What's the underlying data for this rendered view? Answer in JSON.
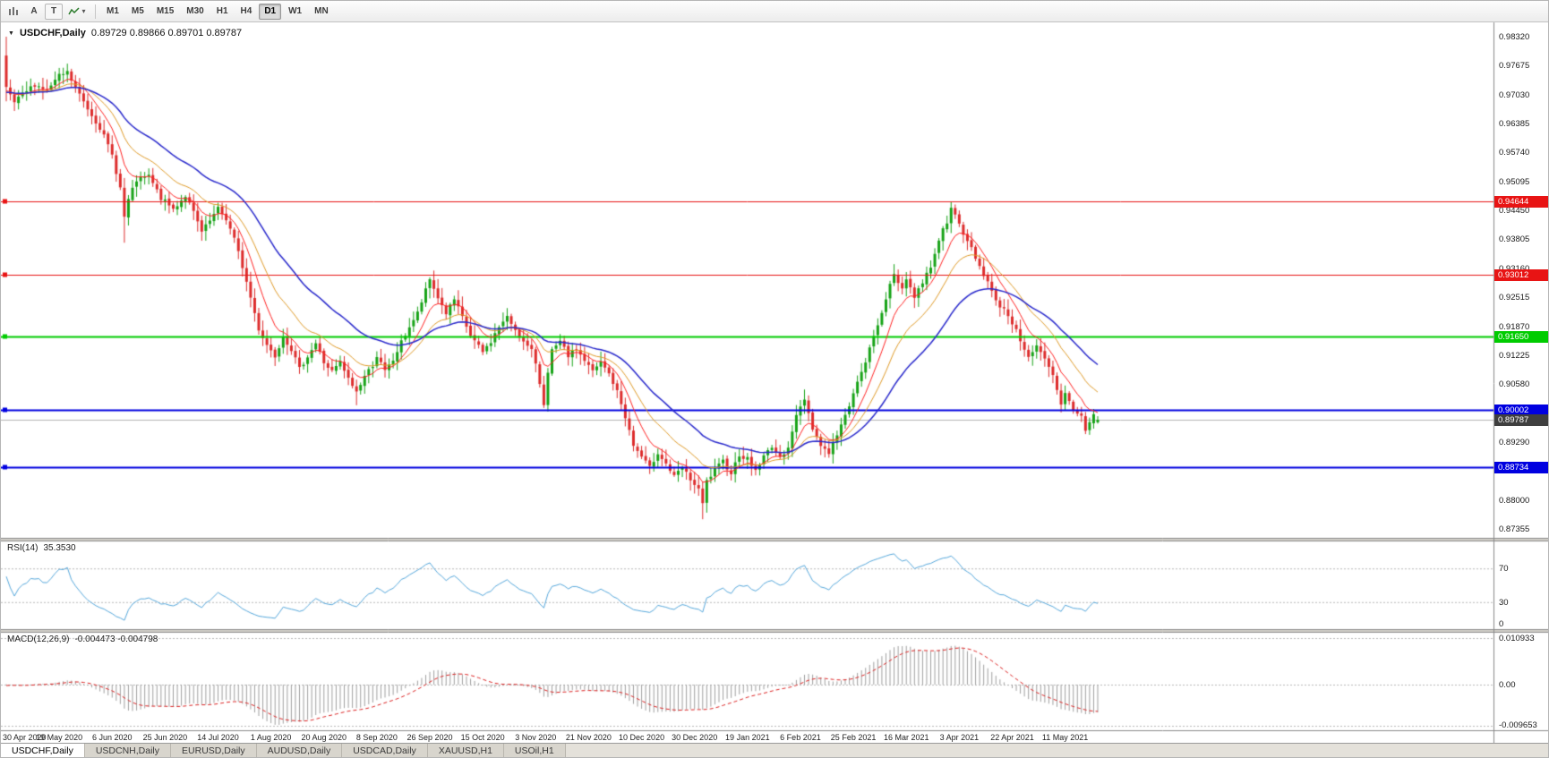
{
  "toolbar": {
    "letter_a": "A",
    "letter_t": "T",
    "icons": {
      "chart_window": "chart-icon",
      "indicators": "indicator-line-icon",
      "caret": "▾",
      "symbol_dropdown": "▼"
    },
    "timeframes": [
      "M1",
      "M5",
      "M15",
      "M30",
      "H1",
      "H4",
      "D1",
      "W1",
      "MN"
    ],
    "active_timeframe": "D1"
  },
  "tabs": {
    "active": "USDCHF,Daily",
    "items": [
      "USDCHF,Daily",
      "USDCNH,Daily",
      "EURUSD,Daily",
      "AUDUSD,Daily",
      "USDCAD,Daily",
      "XAUUSD,H1",
      "USOil,H1"
    ]
  },
  "colors": {
    "bull": "#17a317",
    "bear": "#dd2c2c",
    "price_line": "#b4b4b4",
    "current_price_bg": "#3f3f3f",
    "separator": "#d4d1ca",
    "panel_border": "#8a8a8a",
    "dotted_level": "#b8b8b8"
  },
  "chart_data": {
    "type": "candlestick",
    "title": {
      "symbol": "USDCHF,Daily",
      "ohlc": "0.89729 0.89866 0.89701 0.89787"
    },
    "price_axis": {
      "min": 0.87355,
      "max": 0.9832,
      "tick_step": 0.00645,
      "ticks": [
        "0.98320",
        "0.97675",
        "0.97030",
        "0.96385",
        "0.95740",
        "0.95095",
        "0.94450",
        "0.93805",
        "0.93160",
        "0.92515",
        "0.91870",
        "0.91225",
        "0.90580",
        "0.89935",
        "0.89290",
        "0.88645",
        "0.88000",
        "0.87355"
      ]
    },
    "x_labels": [
      "30 Apr 2020",
      "19 May 2020",
      "6 Jun 2020",
      "25 Jun 2020",
      "14 Jul 2020",
      "1 Aug 2020",
      "20 Aug 2020",
      "8 Sep 2020",
      "26 Sep 2020",
      "15 Oct 2020",
      "3 Nov 2020",
      "21 Nov 2020",
      "10 Dec 2020",
      "30 Dec 2020",
      "19 Jan 2021",
      "6 Feb 2021",
      "25 Feb 2021",
      "16 Mar 2021",
      "3 Apr 2021",
      "22 Apr 2021",
      "11 May 2021"
    ],
    "bars_per_label": 13,
    "total_bars": 269,
    "close_anchors": [
      [
        -70,
        0.964
      ],
      [
        -50,
        0.97
      ],
      [
        -30,
        0.9748
      ],
      [
        -15,
        0.969
      ],
      [
        -5,
        0.9705
      ],
      [
        0,
        0.9715
      ],
      [
        2,
        0.9685
      ],
      [
        4,
        0.9702
      ],
      [
        7,
        0.9726
      ],
      [
        10,
        0.9712
      ],
      [
        13,
        0.9744
      ],
      [
        15,
        0.9752
      ],
      [
        17,
        0.9718
      ],
      [
        20,
        0.9672
      ],
      [
        23,
        0.963
      ],
      [
        26,
        0.9568
      ],
      [
        28,
        0.9495
      ],
      [
        29,
        0.943
      ],
      [
        30,
        0.9468
      ],
      [
        32,
        0.9512
      ],
      [
        35,
        0.9521
      ],
      [
        38,
        0.9472
      ],
      [
        41,
        0.9448
      ],
      [
        44,
        0.9478
      ],
      [
        46,
        0.944
      ],
      [
        48,
        0.9396
      ],
      [
        50,
        0.9421
      ],
      [
        52,
        0.9448
      ],
      [
        54,
        0.9426
      ],
      [
        56,
        0.9381
      ],
      [
        58,
        0.932
      ],
      [
        60,
        0.9251
      ],
      [
        62,
        0.9181
      ],
      [
        64,
        0.9146
      ],
      [
        66,
        0.9121
      ],
      [
        68,
        0.9166
      ],
      [
        70,
        0.9136
      ],
      [
        72,
        0.9091
      ],
      [
        74,
        0.9121
      ],
      [
        76,
        0.9149
      ],
      [
        78,
        0.9106
      ],
      [
        80,
        0.9086
      ],
      [
        82,
        0.9106
      ],
      [
        84,
        0.9069
      ],
      [
        86,
        0.9041
      ],
      [
        88,
        0.9076
      ],
      [
        90,
        0.9101
      ],
      [
        91,
        0.9121
      ],
      [
        93,
        0.9086
      ],
      [
        95,
        0.9111
      ],
      [
        97,
        0.9151
      ],
      [
        99,
        0.9186
      ],
      [
        101,
        0.9216
      ],
      [
        103,
        0.9266
      ],
      [
        104,
        0.9291
      ],
      [
        106,
        0.9251
      ],
      [
        108,
        0.9216
      ],
      [
        110,
        0.9246
      ],
      [
        112,
        0.9206
      ],
      [
        114,
        0.9166
      ],
      [
        116,
        0.9141
      ],
      [
        117,
        0.9129
      ],
      [
        119,
        0.9153
      ],
      [
        121,
        0.9186
      ],
      [
        123,
        0.9206
      ],
      [
        125,
        0.9181
      ],
      [
        127,
        0.9151
      ],
      [
        129,
        0.9131
      ],
      [
        130,
        0.9106
      ],
      [
        131,
        0.9061
      ],
      [
        132,
        0.9016
      ],
      [
        133,
        0.9081
      ],
      [
        134,
        0.9131
      ],
      [
        136,
        0.9151
      ],
      [
        138,
        0.9121
      ],
      [
        140,
        0.9136
      ],
      [
        142,
        0.9111
      ],
      [
        144,
        0.9086
      ],
      [
        146,
        0.9106
      ],
      [
        148,
        0.9081
      ],
      [
        150,
        0.9041
      ],
      [
        152,
        0.8986
      ],
      [
        154,
        0.8921
      ],
      [
        156,
        0.8896
      ],
      [
        158,
        0.8871
      ],
      [
        160,
        0.8906
      ],
      [
        162,
        0.8881
      ],
      [
        164,
        0.8851
      ],
      [
        166,
        0.8871
      ],
      [
        168,
        0.8846
      ],
      [
        170,
        0.8821
      ],
      [
        171,
        0.8791
      ],
      [
        172,
        0.8841
      ],
      [
        174,
        0.8866
      ],
      [
        176,
        0.8886
      ],
      [
        178,
        0.8861
      ],
      [
        180,
        0.8901
      ],
      [
        182,
        0.8891
      ],
      [
        184,
        0.8866
      ],
      [
        186,
        0.8896
      ],
      [
        188,
        0.8921
      ],
      [
        190,
        0.8891
      ],
      [
        192,
        0.8921
      ],
      [
        194,
        0.8986
      ],
      [
        196,
        0.9026
      ],
      [
        198,
        0.8961
      ],
      [
        200,
        0.8921
      ],
      [
        202,
        0.8906
      ],
      [
        204,
        0.8946
      ],
      [
        206,
        0.8986
      ],
      [
        208,
        0.9041
      ],
      [
        210,
        0.9081
      ],
      [
        212,
        0.9136
      ],
      [
        214,
        0.9191
      ],
      [
        216,
        0.9251
      ],
      [
        218,
        0.9301
      ],
      [
        220,
        0.9271
      ],
      [
        221,
        0.9296
      ],
      [
        223,
        0.9251
      ],
      [
        225,
        0.9286
      ],
      [
        227,
        0.9321
      ],
      [
        229,
        0.9381
      ],
      [
        231,
        0.9421
      ],
      [
        232,
        0.9456
      ],
      [
        233,
        0.9431
      ],
      [
        235,
        0.9391
      ],
      [
        237,
        0.9361
      ],
      [
        239,
        0.9321
      ],
      [
        241,
        0.9286
      ],
      [
        243,
        0.9241
      ],
      [
        245,
        0.9226
      ],
      [
        247,
        0.9196
      ],
      [
        249,
        0.9156
      ],
      [
        251,
        0.9121
      ],
      [
        253,
        0.9141
      ],
      [
        255,
        0.9111
      ],
      [
        257,
        0.9076
      ],
      [
        258,
        0.9041
      ],
      [
        259,
        0.9011
      ],
      [
        260,
        0.9036
      ],
      [
        262,
        0.9001
      ],
      [
        264,
        0.8986
      ],
      [
        265,
        0.8956
      ],
      [
        266,
        0.8976
      ],
      [
        267,
        0.8991
      ],
      [
        268,
        0.89787
      ]
    ],
    "wick_overrides": [
      {
        "bar": 0,
        "open": 0.979,
        "high": 0.9832,
        "low": 0.9688
      },
      {
        "bar": 15,
        "high": 0.9772
      },
      {
        "bar": 29,
        "low": 0.9373
      },
      {
        "bar": 52,
        "high": 0.9462
      },
      {
        "bar": 86,
        "low": 0.9011
      },
      {
        "bar": 104,
        "high": 0.9296
      },
      {
        "bar": 132,
        "low": 0.9005
      },
      {
        "bar": 171,
        "low": 0.8757
      },
      {
        "bar": 196,
        "high": 0.9046
      },
      {
        "bar": 232,
        "high": 0.9465
      }
    ],
    "last_candle": {
      "open": 0.89729,
      "high": 0.89866,
      "low": 0.89701,
      "close": 0.89787
    },
    "moving_averages": [
      {
        "type": "ema",
        "period": 8,
        "color": "#ff2323",
        "width": 1
      },
      {
        "type": "ema",
        "period": 17,
        "color": "#e09b28",
        "width": 1
      },
      {
        "type": "ema",
        "period": 34,
        "color": "#2929cc",
        "width": 1.5
      }
    ],
    "horizontal_levels": [
      {
        "price": 0.94644,
        "label": "0.94644",
        "color": "#e81414",
        "width": 1
      },
      {
        "price": 0.93012,
        "label": "0.93012",
        "color": "#e81414",
        "width": 1
      },
      {
        "price": 0.9165,
        "label": "0.91650",
        "color": "#00cc00",
        "width": 2
      },
      {
        "price": 0.90002,
        "label": "0.90002",
        "color": "#0000e0",
        "width": 2
      },
      {
        "price": 0.88734,
        "label": "0.88734",
        "color": "#0000e0",
        "width": 2
      }
    ],
    "current_price": {
      "price": 0.89787,
      "label": "0.89787"
    },
    "indicators": {
      "rsi": {
        "name": "RSI(14)",
        "value_label": "35.3530",
        "levels": [
          70,
          30
        ],
        "axis_labels": [
          "70",
          "30",
          "0"
        ],
        "line_color": "#56a8dc"
      },
      "macd": {
        "name": "MACD(12,26,9)",
        "value_labels": "-0.004473 -0.004798",
        "axis_labels": [
          "0.010933",
          "0.00",
          "-0.009653"
        ],
        "scale_max": 0.010933,
        "scale_min": -0.009653,
        "histogram_color": "#a0a0a0",
        "signal_color": "#dd2222"
      }
    }
  }
}
